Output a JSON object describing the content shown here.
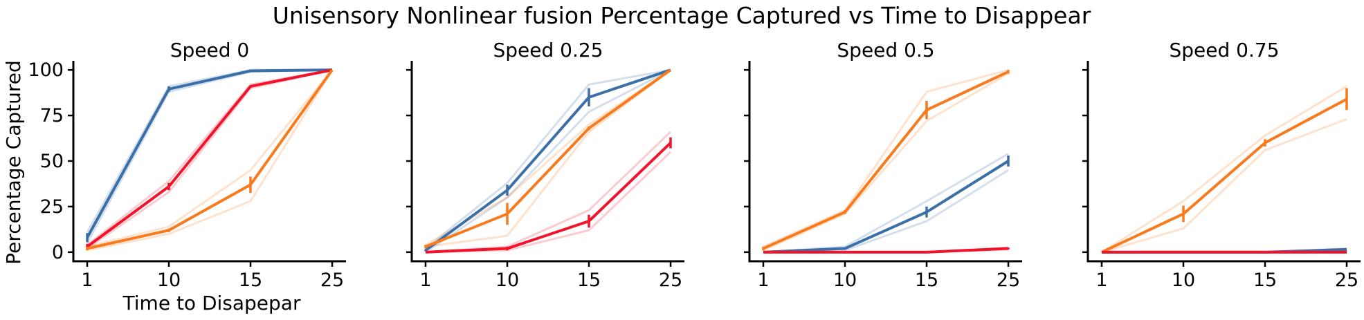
{
  "chart_data": {
    "type": "line",
    "title": "Unisensory Nonlinear fusion Percentage Captured vs Time to Disappear",
    "xlabel": "Time to Disapepar",
    "ylabel": "Percentage Captured",
    "x": [
      1,
      10,
      15,
      25
    ],
    "xticks": [
      "1",
      "10",
      "15",
      "25"
    ],
    "yticks": [
      "0",
      "25",
      "50",
      "75",
      "100"
    ],
    "ylim": [
      -5,
      105
    ],
    "grid": false,
    "legend": "none",
    "colors": {
      "blue": "#3a6fa8",
      "orange": "#f97a1c",
      "red": "#f0132b"
    },
    "panels": [
      {
        "title": "Speed 0",
        "series": [
          {
            "color": "blue",
            "values": [
              8,
              89.5,
              99.5,
              100
            ],
            "err": [
              2.5,
              1.5,
              0.5,
              0
            ],
            "runs": [
              [
                5,
                88,
                99,
                100
              ],
              [
                11,
                91,
                100,
                100
              ]
            ]
          },
          {
            "color": "red",
            "values": [
              3,
              36,
              91,
              100
            ],
            "err": [
              1.5,
              2,
              0.5,
              0
            ],
            "runs": [
              [
                2,
                33,
                90,
                100
              ],
              [
                4,
                39,
                92,
                100
              ]
            ]
          },
          {
            "color": "orange",
            "values": [
              2,
              12,
              37,
              100
            ],
            "err": [
              1,
              1,
              4.5,
              0
            ],
            "runs": [
              [
                1,
                10,
                28,
                100
              ],
              [
                3,
                14,
                45,
                100
              ]
            ]
          }
        ]
      },
      {
        "title": "Speed 0.25",
        "series": [
          {
            "color": "blue",
            "values": [
              1,
              34,
              85,
              100
            ],
            "err": [
              0.5,
              3,
              5,
              0
            ],
            "runs": [
              [
                0,
                30,
                77,
                100
              ],
              [
                2,
                38,
                92,
                100
              ]
            ]
          },
          {
            "color": "red",
            "values": [
              0,
              2,
              17,
              60
            ],
            "err": [
              0,
              1,
              3.5,
              3
            ],
            "runs": [
              [
                0,
                1,
                12,
                55
              ],
              [
                0,
                3,
                23,
                66
              ]
            ]
          },
          {
            "color": "orange",
            "values": [
              3,
              21,
              68,
              100
            ],
            "err": [
              1,
              6,
              1,
              0
            ],
            "runs": [
              [
                3,
                9,
                66,
                100
              ],
              [
                4,
                30,
                70,
                100
              ]
            ]
          }
        ]
      },
      {
        "title": "Speed 0.5",
        "series": [
          {
            "color": "orange",
            "values": [
              2,
              22,
              78,
              99
            ],
            "err": [
              1,
              1,
              5,
              1
            ],
            "runs": [
              [
                1,
                21,
                72,
                98
              ],
              [
                3,
                23,
                88,
                100
              ]
            ]
          },
          {
            "color": "blue",
            "values": [
              0,
              2,
              22,
              50
            ],
            "err": [
              0,
              0.5,
              3,
              3
            ],
            "runs": [
              [
                0,
                1,
                17,
                45
              ],
              [
                0,
                3,
                28,
                54
              ]
            ]
          },
          {
            "color": "red",
            "values": [
              0,
              0,
              0,
              2
            ],
            "err": [
              0,
              0,
              0,
              0.5
            ],
            "runs": [
              [
                0,
                0,
                0,
                1.5
              ],
              [
                0,
                0,
                0,
                2.5
              ]
            ]
          }
        ]
      },
      {
        "title": "Speed 0.75",
        "series": [
          {
            "color": "orange",
            "values": [
              0,
              21,
              60,
              84
            ],
            "err": [
              0,
              4.5,
              2,
              6
            ],
            "runs": [
              [
                0,
                13,
                56,
                73
              ],
              [
                0,
                28,
                64,
                91
              ]
            ]
          },
          {
            "color": "blue",
            "values": [
              0,
              0,
              0,
              1.5
            ],
            "err": [
              0,
              0,
              0,
              0
            ],
            "runs": [
              [
                0,
                0,
                0,
                1
              ],
              [
                0,
                0,
                0,
                2
              ]
            ]
          },
          {
            "color": "red",
            "values": [
              0,
              0,
              0,
              0
            ],
            "err": [
              0,
              0,
              0,
              0
            ],
            "runs": [
              [
                0,
                0,
                0,
                0
              ],
              [
                0,
                0,
                0,
                0
              ]
            ]
          }
        ]
      }
    ]
  }
}
